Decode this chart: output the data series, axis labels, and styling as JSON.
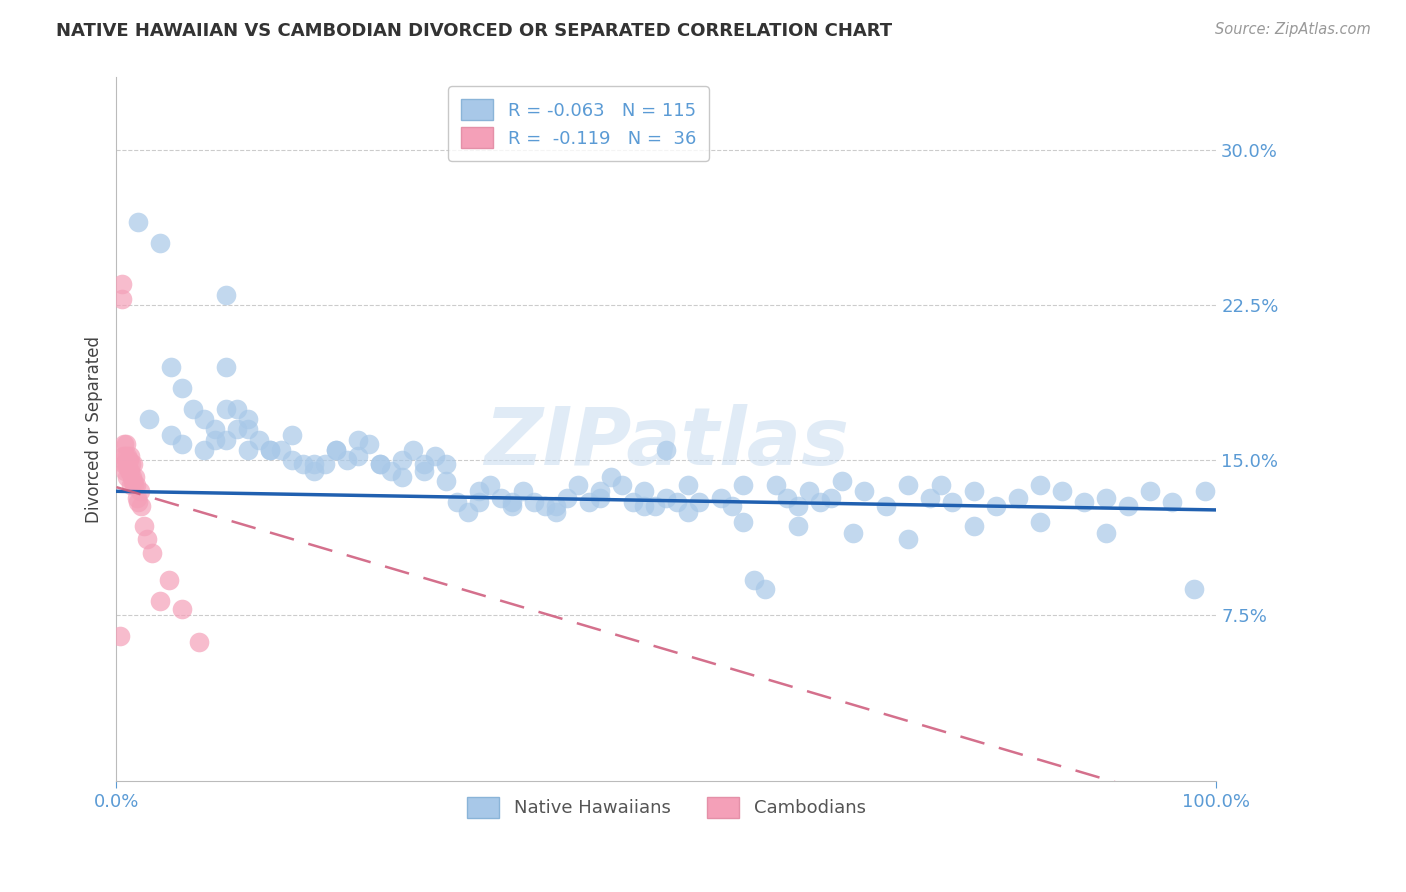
{
  "title": "NATIVE HAWAIIAN VS CAMBODIAN DIVORCED OR SEPARATED CORRELATION CHART",
  "source": "Source: ZipAtlas.com",
  "ylabel": "Divorced or Separated",
  "yticks": [
    0.0,
    0.075,
    0.15,
    0.225,
    0.3
  ],
  "ytick_labels": [
    "",
    "7.5%",
    "15.0%",
    "22.5%",
    "30.0%"
  ],
  "xlim": [
    0.0,
    1.0
  ],
  "ylim": [
    -0.005,
    0.335
  ],
  "blue_color": "#a8c8e8",
  "pink_color": "#f4a0b8",
  "trend_blue_color": "#2060b0",
  "trend_pink_color": "#d06080",
  "watermark": "ZIPatlas",
  "blue_R": -0.063,
  "blue_N": 115,
  "pink_R": -0.119,
  "pink_N": 36,
  "blue_trend_start": 0.135,
  "blue_trend_end": 0.126,
  "pink_trend_start": 0.137,
  "pink_trend_end": -0.02,
  "blue_x": [
    0.02,
    0.04,
    0.05,
    0.06,
    0.07,
    0.08,
    0.09,
    0.1,
    0.1,
    0.11,
    0.11,
    0.12,
    0.12,
    0.13,
    0.14,
    0.15,
    0.16,
    0.17,
    0.18,
    0.19,
    0.2,
    0.21,
    0.22,
    0.23,
    0.24,
    0.25,
    0.26,
    0.27,
    0.28,
    0.29,
    0.3,
    0.31,
    0.32,
    0.33,
    0.34,
    0.35,
    0.36,
    0.37,
    0.38,
    0.39,
    0.4,
    0.41,
    0.42,
    0.43,
    0.44,
    0.45,
    0.46,
    0.47,
    0.48,
    0.49,
    0.5,
    0.5,
    0.51,
    0.52,
    0.53,
    0.55,
    0.56,
    0.57,
    0.58,
    0.59,
    0.6,
    0.61,
    0.62,
    0.63,
    0.64,
    0.65,
    0.66,
    0.68,
    0.7,
    0.72,
    0.74,
    0.75,
    0.76,
    0.78,
    0.8,
    0.82,
    0.84,
    0.86,
    0.88,
    0.9,
    0.92,
    0.94,
    0.96,
    0.98,
    0.99,
    0.03,
    0.05,
    0.06,
    0.08,
    0.09,
    0.1,
    0.12,
    0.14,
    0.16,
    0.18,
    0.2,
    0.22,
    0.24,
    0.26,
    0.28,
    0.3,
    0.33,
    0.36,
    0.4,
    0.44,
    0.48,
    0.52,
    0.57,
    0.62,
    0.67,
    0.72,
    0.78,
    0.84,
    0.9,
    0.1
  ],
  "blue_y": [
    0.265,
    0.255,
    0.195,
    0.185,
    0.175,
    0.17,
    0.165,
    0.16,
    0.195,
    0.175,
    0.165,
    0.155,
    0.17,
    0.16,
    0.155,
    0.155,
    0.15,
    0.148,
    0.145,
    0.148,
    0.155,
    0.15,
    0.16,
    0.158,
    0.148,
    0.145,
    0.15,
    0.155,
    0.148,
    0.152,
    0.148,
    0.13,
    0.125,
    0.13,
    0.138,
    0.132,
    0.128,
    0.135,
    0.13,
    0.128,
    0.125,
    0.132,
    0.138,
    0.13,
    0.135,
    0.142,
    0.138,
    0.13,
    0.135,
    0.128,
    0.155,
    0.132,
    0.13,
    0.138,
    0.13,
    0.132,
    0.128,
    0.138,
    0.092,
    0.088,
    0.138,
    0.132,
    0.128,
    0.135,
    0.13,
    0.132,
    0.14,
    0.135,
    0.128,
    0.138,
    0.132,
    0.138,
    0.13,
    0.135,
    0.128,
    0.132,
    0.138,
    0.135,
    0.13,
    0.132,
    0.128,
    0.135,
    0.13,
    0.088,
    0.135,
    0.17,
    0.162,
    0.158,
    0.155,
    0.16,
    0.175,
    0.165,
    0.155,
    0.162,
    0.148,
    0.155,
    0.152,
    0.148,
    0.142,
    0.145,
    0.14,
    0.135,
    0.13,
    0.128,
    0.132,
    0.128,
    0.125,
    0.12,
    0.118,
    0.115,
    0.112,
    0.118,
    0.12,
    0.115,
    0.23
  ],
  "pink_x": [
    0.003,
    0.005,
    0.005,
    0.006,
    0.007,
    0.007,
    0.008,
    0.008,
    0.009,
    0.009,
    0.01,
    0.01,
    0.01,
    0.011,
    0.011,
    0.012,
    0.012,
    0.013,
    0.013,
    0.014,
    0.015,
    0.015,
    0.016,
    0.017,
    0.018,
    0.019,
    0.02,
    0.021,
    0.022,
    0.025,
    0.028,
    0.032,
    0.04,
    0.048,
    0.06,
    0.075
  ],
  "pink_y": [
    0.065,
    0.235,
    0.228,
    0.152,
    0.148,
    0.158,
    0.152,
    0.145,
    0.148,
    0.158,
    0.152,
    0.148,
    0.142,
    0.15,
    0.145,
    0.152,
    0.145,
    0.148,
    0.138,
    0.142,
    0.148,
    0.14,
    0.138,
    0.142,
    0.138,
    0.132,
    0.13,
    0.135,
    0.128,
    0.118,
    0.112,
    0.105,
    0.082,
    0.092,
    0.078,
    0.062
  ]
}
